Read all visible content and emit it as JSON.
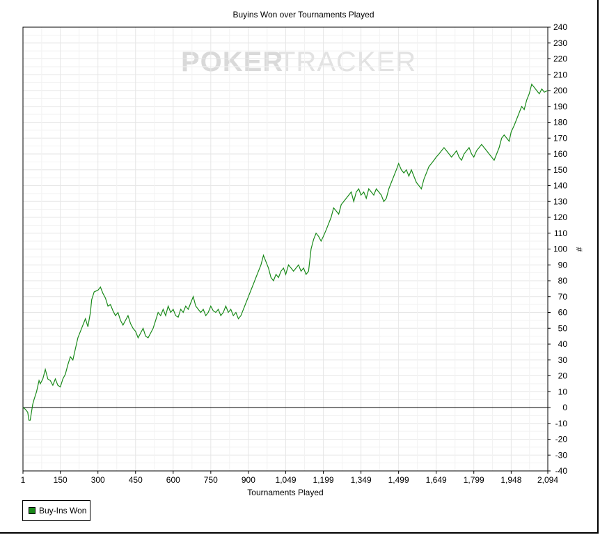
{
  "chart_data": {
    "type": "line",
    "title": "Buyins Won over Tournaments Played",
    "xlabel": "Tournaments Played",
    "ylabel": "#",
    "watermark": {
      "bold": "POKER",
      "light": "TRACKER"
    },
    "xlim": [
      1,
      2094
    ],
    "ylim": [
      -40,
      240
    ],
    "x_ticks": [
      1,
      150,
      300,
      450,
      600,
      750,
      900,
      1049,
      1199,
      1349,
      1499,
      1649,
      1799,
      1948,
      2094
    ],
    "x_tick_labels": [
      "1",
      "150",
      "300",
      "450",
      "600",
      "750",
      "900",
      "1,049",
      "1,199",
      "1,349",
      "1,499",
      "1,649",
      "1,799",
      "1,948",
      "2,094"
    ],
    "y_ticks": [
      -40,
      -30,
      -20,
      -10,
      0,
      10,
      20,
      30,
      40,
      50,
      60,
      70,
      80,
      90,
      100,
      110,
      120,
      130,
      140,
      150,
      160,
      170,
      180,
      190,
      200,
      210,
      220,
      230,
      240
    ],
    "grid": true,
    "y_axis_position": "right",
    "legend_position": "bottom-left",
    "series": [
      {
        "name": "Buy-Ins Won",
        "color": "#1a8a1a",
        "points": [
          [
            1,
            0
          ],
          [
            10,
            -1
          ],
          [
            20,
            -3
          ],
          [
            25,
            -8
          ],
          [
            30,
            -8
          ],
          [
            35,
            -3
          ],
          [
            40,
            2
          ],
          [
            45,
            5
          ],
          [
            55,
            10
          ],
          [
            65,
            17
          ],
          [
            70,
            15
          ],
          [
            80,
            18
          ],
          [
            90,
            24
          ],
          [
            100,
            18
          ],
          [
            110,
            17
          ],
          [
            120,
            14
          ],
          [
            130,
            18
          ],
          [
            140,
            14
          ],
          [
            150,
            13
          ],
          [
            160,
            18
          ],
          [
            170,
            21
          ],
          [
            180,
            27
          ],
          [
            190,
            32
          ],
          [
            200,
            30
          ],
          [
            210,
            37
          ],
          [
            220,
            44
          ],
          [
            230,
            48
          ],
          [
            240,
            52
          ],
          [
            250,
            56
          ],
          [
            260,
            51
          ],
          [
            270,
            60
          ],
          [
            275,
            68
          ],
          [
            285,
            73
          ],
          [
            300,
            74
          ],
          [
            310,
            76
          ],
          [
            320,
            72
          ],
          [
            330,
            69
          ],
          [
            340,
            64
          ],
          [
            350,
            65
          ],
          [
            360,
            61
          ],
          [
            370,
            58
          ],
          [
            380,
            60
          ],
          [
            390,
            55
          ],
          [
            400,
            52
          ],
          [
            410,
            55
          ],
          [
            420,
            58
          ],
          [
            430,
            53
          ],
          [
            440,
            50
          ],
          [
            450,
            48
          ],
          [
            460,
            44
          ],
          [
            470,
            47
          ],
          [
            480,
            50
          ],
          [
            490,
            45
          ],
          [
            500,
            44
          ],
          [
            510,
            47
          ],
          [
            520,
            50
          ],
          [
            530,
            55
          ],
          [
            540,
            60
          ],
          [
            550,
            58
          ],
          [
            560,
            62
          ],
          [
            570,
            58
          ],
          [
            580,
            64
          ],
          [
            590,
            60
          ],
          [
            600,
            62
          ],
          [
            610,
            58
          ],
          [
            620,
            57
          ],
          [
            630,
            62
          ],
          [
            640,
            60
          ],
          [
            650,
            64
          ],
          [
            660,
            62
          ],
          [
            670,
            66
          ],
          [
            680,
            70
          ],
          [
            690,
            64
          ],
          [
            700,
            62
          ],
          [
            710,
            60
          ],
          [
            720,
            62
          ],
          [
            730,
            58
          ],
          [
            740,
            60
          ],
          [
            750,
            64
          ],
          [
            760,
            61
          ],
          [
            770,
            60
          ],
          [
            780,
            62
          ],
          [
            790,
            58
          ],
          [
            800,
            60
          ],
          [
            810,
            64
          ],
          [
            820,
            60
          ],
          [
            830,
            62
          ],
          [
            840,
            58
          ],
          [
            850,
            60
          ],
          [
            860,
            56
          ],
          [
            870,
            58
          ],
          [
            880,
            62
          ],
          [
            890,
            66
          ],
          [
            900,
            70
          ],
          [
            910,
            74
          ],
          [
            920,
            78
          ],
          [
            930,
            82
          ],
          [
            940,
            86
          ],
          [
            950,
            90
          ],
          [
            960,
            96
          ],
          [
            970,
            92
          ],
          [
            980,
            88
          ],
          [
            990,
            82
          ],
          [
            1000,
            80
          ],
          [
            1010,
            84
          ],
          [
            1020,
            82
          ],
          [
            1030,
            86
          ],
          [
            1040,
            88
          ],
          [
            1049,
            84
          ],
          [
            1060,
            90
          ],
          [
            1070,
            88
          ],
          [
            1080,
            86
          ],
          [
            1090,
            88
          ],
          [
            1100,
            90
          ],
          [
            1110,
            86
          ],
          [
            1120,
            88
          ],
          [
            1130,
            84
          ],
          [
            1140,
            86
          ],
          [
            1150,
            100
          ],
          [
            1160,
            106
          ],
          [
            1170,
            110
          ],
          [
            1180,
            108
          ],
          [
            1190,
            105
          ],
          [
            1199,
            108
          ],
          [
            1210,
            112
          ],
          [
            1220,
            116
          ],
          [
            1230,
            120
          ],
          [
            1240,
            126
          ],
          [
            1250,
            124
          ],
          [
            1260,
            122
          ],
          [
            1270,
            128
          ],
          [
            1280,
            130
          ],
          [
            1290,
            132
          ],
          [
            1300,
            134
          ],
          [
            1310,
            136
          ],
          [
            1320,
            130
          ],
          [
            1330,
            136
          ],
          [
            1340,
            138
          ],
          [
            1349,
            134
          ],
          [
            1360,
            136
          ],
          [
            1370,
            132
          ],
          [
            1380,
            138
          ],
          [
            1390,
            136
          ],
          [
            1400,
            134
          ],
          [
            1410,
            138
          ],
          [
            1420,
            136
          ],
          [
            1430,
            134
          ],
          [
            1440,
            130
          ],
          [
            1450,
            132
          ],
          [
            1460,
            138
          ],
          [
            1470,
            142
          ],
          [
            1480,
            146
          ],
          [
            1490,
            150
          ],
          [
            1499,
            154
          ],
          [
            1510,
            150
          ],
          [
            1520,
            148
          ],
          [
            1530,
            150
          ],
          [
            1540,
            146
          ],
          [
            1550,
            150
          ],
          [
            1560,
            146
          ],
          [
            1570,
            142
          ],
          [
            1580,
            140
          ],
          [
            1590,
            138
          ],
          [
            1600,
            144
          ],
          [
            1610,
            148
          ],
          [
            1620,
            152
          ],
          [
            1630,
            154
          ],
          [
            1640,
            156
          ],
          [
            1649,
            158
          ],
          [
            1660,
            160
          ],
          [
            1670,
            162
          ],
          [
            1680,
            164
          ],
          [
            1690,
            162
          ],
          [
            1700,
            160
          ],
          [
            1710,
            158
          ],
          [
            1720,
            160
          ],
          [
            1730,
            162
          ],
          [
            1740,
            158
          ],
          [
            1750,
            156
          ],
          [
            1760,
            160
          ],
          [
            1770,
            162
          ],
          [
            1780,
            164
          ],
          [
            1790,
            160
          ],
          [
            1799,
            158
          ],
          [
            1810,
            162
          ],
          [
            1820,
            164
          ],
          [
            1830,
            166
          ],
          [
            1840,
            164
          ],
          [
            1850,
            162
          ],
          [
            1860,
            160
          ],
          [
            1870,
            158
          ],
          [
            1880,
            156
          ],
          [
            1890,
            160
          ],
          [
            1900,
            164
          ],
          [
            1910,
            170
          ],
          [
            1920,
            172
          ],
          [
            1930,
            170
          ],
          [
            1940,
            168
          ],
          [
            1948,
            174
          ],
          [
            1960,
            178
          ],
          [
            1970,
            182
          ],
          [
            1980,
            186
          ],
          [
            1990,
            190
          ],
          [
            2000,
            188
          ],
          [
            2010,
            194
          ],
          [
            2020,
            198
          ],
          [
            2030,
            204
          ],
          [
            2040,
            202
          ],
          [
            2050,
            200
          ],
          [
            2060,
            198
          ],
          [
            2070,
            201
          ],
          [
            2080,
            199
          ],
          [
            2094,
            200
          ]
        ]
      }
    ]
  },
  "legend": {
    "items": [
      {
        "label": "Buy-Ins Won",
        "color": "#1a8a1a"
      }
    ]
  }
}
